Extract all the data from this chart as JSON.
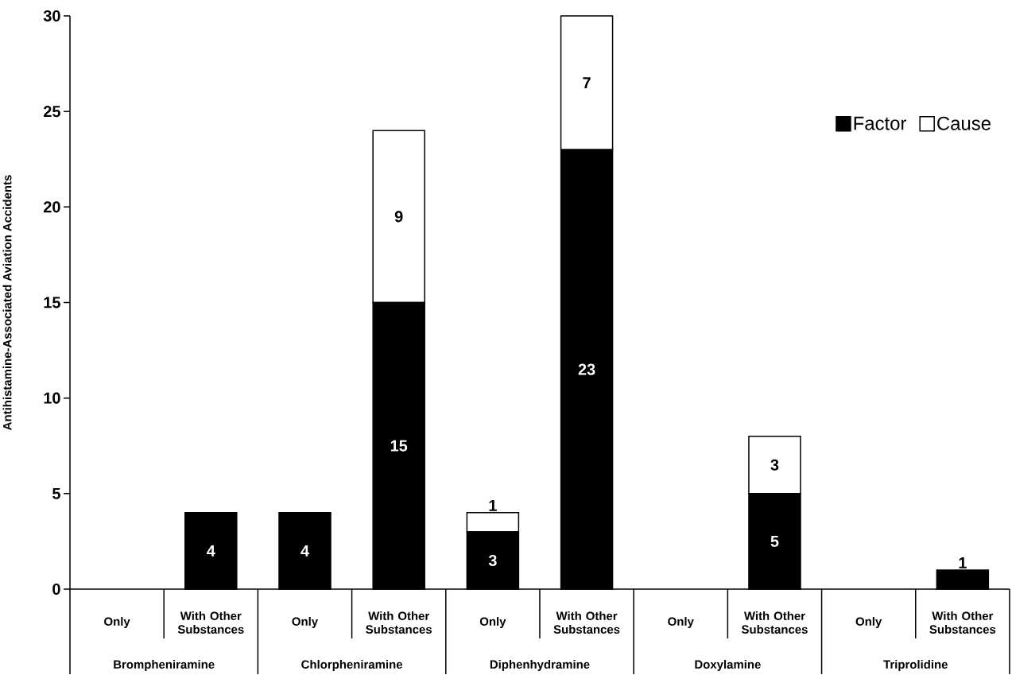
{
  "chart_data": {
    "type": "bar",
    "stacked": true,
    "ylabel": "Antihistamine-Associated Aviation Accidents",
    "categories": [
      "Only",
      "With Other Substances",
      "Only",
      "With Other Substances",
      "Only",
      "With Other Substances",
      "Only",
      "With Other Substances",
      "Only",
      "With Other Substances"
    ],
    "annotations": [
      "Brompheniramine",
      "Chlorpheniramine",
      "Diphenhydramine",
      "Doxylamine",
      "Triprolidine"
    ],
    "series": [
      {
        "name": "Factor",
        "color": "#000000",
        "values": [
          0,
          4,
          4,
          15,
          3,
          23,
          0,
          5,
          0,
          1
        ],
        "value_labels": [
          null,
          "4",
          "4",
          "15",
          "3",
          "23",
          null,
          "5",
          null,
          "1"
        ]
      },
      {
        "name": "Cause",
        "color": "#ffffff",
        "values": [
          0,
          0,
          0,
          9,
          1,
          7,
          0,
          3,
          0,
          0
        ],
        "value_labels": [
          null,
          null,
          null,
          "9",
          "1",
          "7",
          null,
          "3",
          null,
          null
        ]
      }
    ],
    "ylim": [
      0,
      30
    ],
    "yticks": [
      0,
      5,
      10,
      15,
      20,
      25,
      30
    ],
    "legend": "top right"
  }
}
